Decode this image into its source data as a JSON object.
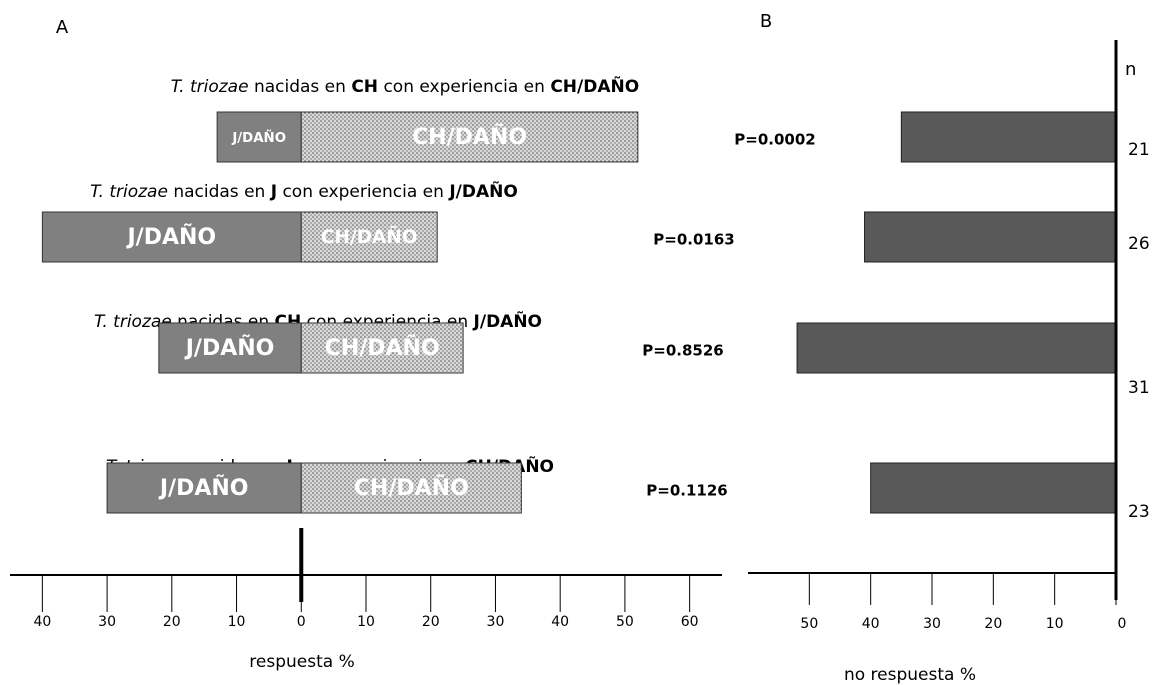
{
  "chart_data": [
    {
      "type": "diverging-bar",
      "panel_label": "A",
      "row_titles": [
        [
          {
            "text": "T. triozae",
            "style": "italic"
          },
          {
            "text": " nacidas en ",
            "style": "normal"
          },
          {
            "text": "CH",
            "style": "bold"
          },
          {
            "text": " con experiencia en ",
            "style": "normal"
          },
          {
            "text": "CH/DAÑO",
            "style": "bold"
          }
        ],
        [
          {
            "text": "T. triozae",
            "style": "italic"
          },
          {
            "text": " nacidas en ",
            "style": "normal"
          },
          {
            "text": "J",
            "style": "bold"
          },
          {
            "text": " con experiencia en ",
            "style": "normal"
          },
          {
            "text": "J/DAÑO",
            "style": "bold"
          }
        ],
        [
          {
            "text": "T. triozae",
            "style": "italic"
          },
          {
            "text": " nacidas en ",
            "style": "normal"
          },
          {
            "text": "CH",
            "style": "bold"
          },
          {
            "text": " con experiencia en ",
            "style": "normal"
          },
          {
            "text": "J/DAÑO",
            "style": "bold"
          }
        ],
        [
          {
            "text": "T. triozae",
            "style": "italic"
          },
          {
            "text": " nacidas en ",
            "style": "normal"
          },
          {
            "text": "J",
            "style": "bold"
          },
          {
            "text": " con experiencia en ",
            "style": "normal"
          },
          {
            "text": "CH/DAÑO",
            "style": "bold"
          }
        ]
      ],
      "series": [
        {
          "name": "J/DAÑO",
          "color": "#808080",
          "values": [
            -13,
            -40,
            -22,
            -30
          ]
        },
        {
          "name": "CH/DAÑO",
          "color": "#d9d9d9",
          "pattern": "stipple",
          "values": [
            52,
            21,
            25,
            34
          ]
        }
      ],
      "p_labels": [
        "P=0.0002",
        "P=0.0163",
        "P=0.8526",
        "P=0.1126"
      ],
      "x_label": "respuesta %",
      "xlim": [
        -45,
        65
      ],
      "xticks": [
        {
          "value": -40,
          "label": "40"
        },
        {
          "value": -30,
          "label": "30"
        },
        {
          "value": -20,
          "label": "20"
        },
        {
          "value": -10,
          "label": "10"
        },
        0,
        10,
        20,
        30,
        40,
        50,
        60
      ]
    },
    {
      "type": "bar",
      "panel_label": "B",
      "values": [
        35,
        41,
        52,
        40
      ],
      "color": "#595959",
      "n_header": "n",
      "n_values": [
        21,
        26,
        31,
        23
      ],
      "x_label": "no respuesta %",
      "xlim": [
        60,
        0
      ],
      "xticks": [
        50,
        40,
        30,
        20,
        10,
        0
      ]
    }
  ]
}
